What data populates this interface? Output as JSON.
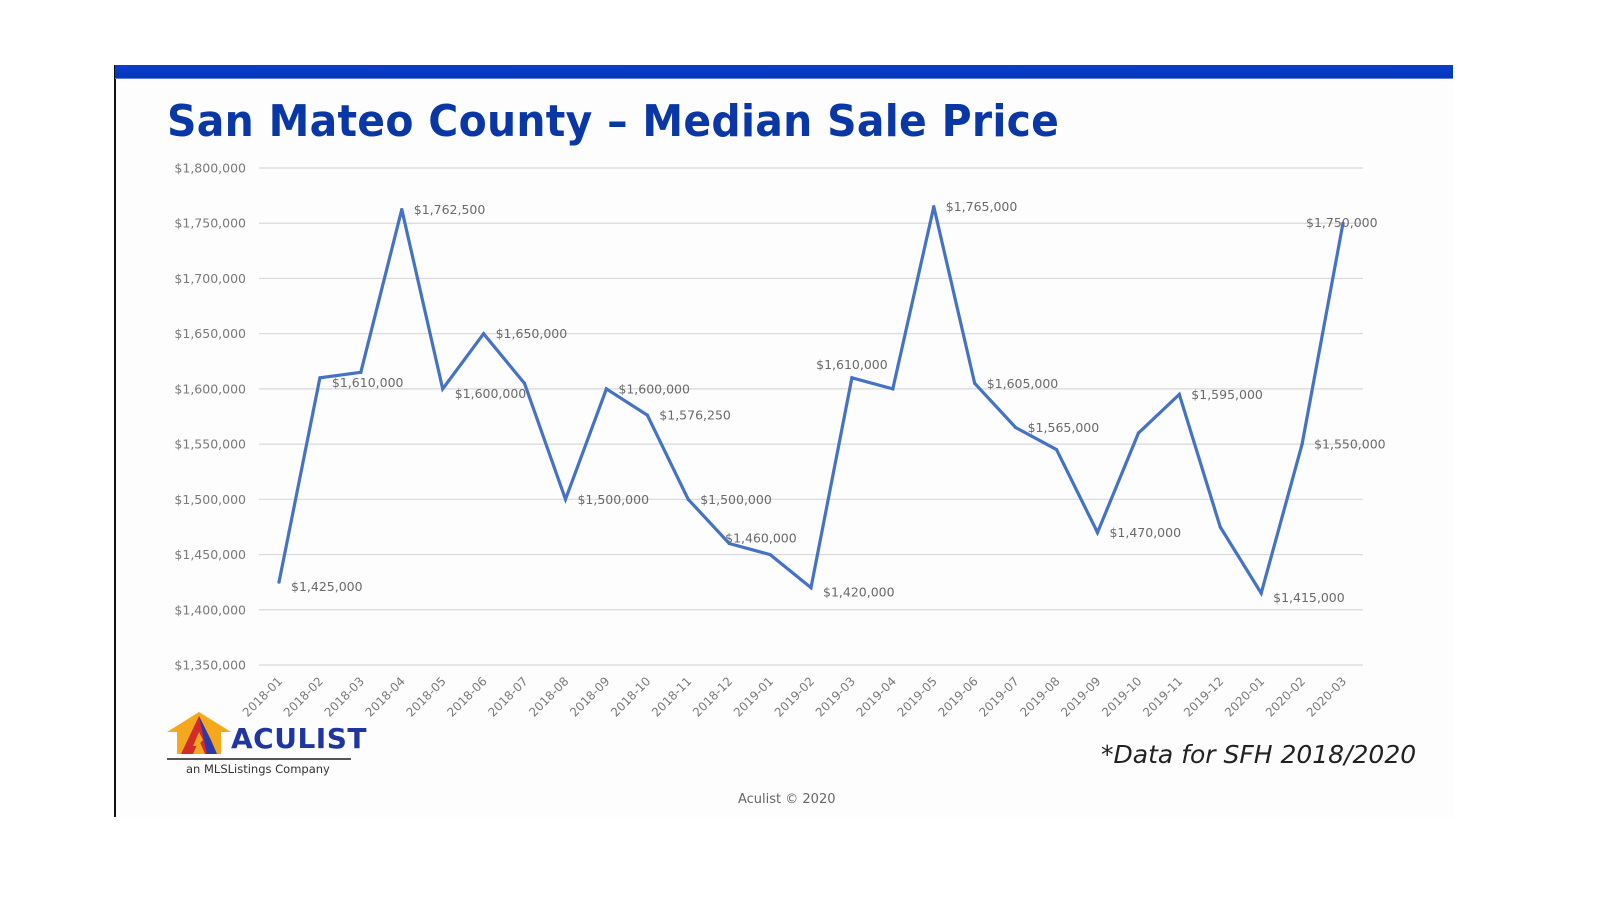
{
  "slide": {
    "title": "San Mateo County – Median Sale Price",
    "note": "*Data for SFH 2018/2020",
    "copyright": "Aculist © 2020",
    "logo": {
      "name": "ACULIST",
      "tagline": "an MLSListings Company",
      "icon": "house-logo-icon"
    },
    "accent_color": "#0a37a6"
  },
  "chart_data": {
    "type": "line",
    "title": "San Mateo County – Median Sale Price",
    "xlabel": "",
    "ylabel": "",
    "ylim": [
      1350000,
      1800000
    ],
    "ytick_step": 50000,
    "grid": true,
    "legend": "none",
    "line_color": "#4472c4",
    "categories": [
      "2018-01",
      "2018-02",
      "2018-03",
      "2018-04",
      "2018-05",
      "2018-06",
      "2018-07",
      "2018-08",
      "2018-09",
      "2018-10",
      "2018-11",
      "2018-12",
      "2019-01",
      "2019-02",
      "2019-03",
      "2019-04",
      "2019-05",
      "2019-06",
      "2019-07",
      "2019-08",
      "2019-09",
      "2019-10",
      "2019-11",
      "2019-12",
      "2020-01",
      "2020-02",
      "2020-03"
    ],
    "series": [
      {
        "name": "Median Sale Price",
        "values": [
          1425000,
          1610000,
          1615000,
          1762500,
          1600000,
          1650000,
          1605000,
          1500000,
          1600000,
          1576250,
          1500000,
          1460000,
          1450000,
          1420000,
          1610000,
          1600000,
          1765000,
          1605000,
          1565000,
          1545000,
          1470000,
          1560000,
          1595000,
          1475000,
          1415000,
          1550000,
          1750000
        ]
      }
    ],
    "data_labels": [
      {
        "index": 0,
        "text": "$1,425,000",
        "pos": "right-below"
      },
      {
        "index": 1,
        "text": "$1,610,000",
        "pos": "right-below"
      },
      {
        "index": 3,
        "text": "$1,762,500",
        "pos": "right"
      },
      {
        "index": 4,
        "text": "$1,600,000",
        "pos": "right-below"
      },
      {
        "index": 5,
        "text": "$1,650,000",
        "pos": "right"
      },
      {
        "index": 7,
        "text": "$1,500,000",
        "pos": "right"
      },
      {
        "index": 8,
        "text": "$1,600,000",
        "pos": "right"
      },
      {
        "index": 9,
        "text": "$1,576,250",
        "pos": "right"
      },
      {
        "index": 10,
        "text": "$1,500,000",
        "pos": "right"
      },
      {
        "index": 11,
        "text": "$1,460,000",
        "pos": "right-above"
      },
      {
        "index": 13,
        "text": "$1,420,000",
        "pos": "right-below"
      },
      {
        "index": 14,
        "text": "$1,610,000",
        "pos": "above"
      },
      {
        "index": 16,
        "text": "$1,765,000",
        "pos": "right"
      },
      {
        "index": 17,
        "text": "$1,605,000",
        "pos": "right"
      },
      {
        "index": 18,
        "text": "$1,565,000",
        "pos": "right"
      },
      {
        "index": 20,
        "text": "$1,470,000",
        "pos": "right"
      },
      {
        "index": 22,
        "text": "$1,595,000",
        "pos": "right"
      },
      {
        "index": 24,
        "text": "$1,415,000",
        "pos": "right-below"
      },
      {
        "index": 25,
        "text": "$1,550,000",
        "pos": "right"
      },
      {
        "index": 26,
        "text": "$1,750,000",
        "pos": "above-left"
      }
    ]
  }
}
